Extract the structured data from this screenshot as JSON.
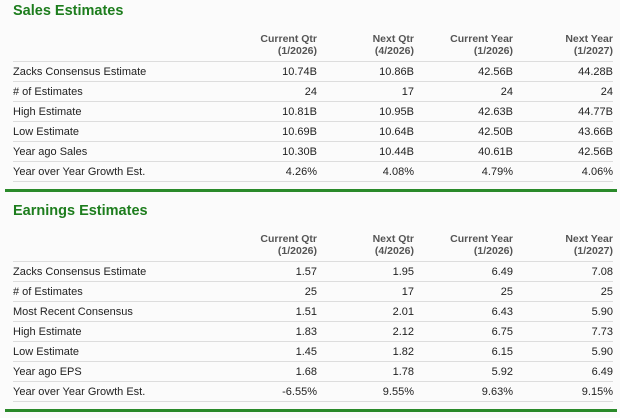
{
  "colors": {
    "title": "#1d7d1d",
    "divider": "#2a8a2a"
  },
  "sales": {
    "title": "Sales Estimates",
    "columns": [
      {
        "name": "Current Qtr",
        "period": "(1/2026)"
      },
      {
        "name": "Next Qtr",
        "period": "(4/2026)"
      },
      {
        "name": "Current Year",
        "period": "(1/2026)"
      },
      {
        "name": "Next Year",
        "period": "(1/2027)"
      }
    ],
    "rows": [
      {
        "label": "Zacks Consensus Estimate",
        "values": [
          "10.74B",
          "10.86B",
          "42.56B",
          "44.28B"
        ]
      },
      {
        "label": "# of Estimates",
        "values": [
          "24",
          "17",
          "24",
          "24"
        ]
      },
      {
        "label": "High Estimate",
        "values": [
          "10.81B",
          "10.95B",
          "42.63B",
          "44.77B"
        ]
      },
      {
        "label": "Low Estimate",
        "values": [
          "10.69B",
          "10.64B",
          "42.50B",
          "43.66B"
        ]
      },
      {
        "label": "Year ago Sales",
        "values": [
          "10.30B",
          "10.44B",
          "40.61B",
          "42.56B"
        ]
      },
      {
        "label": "Year over Year Growth Est.",
        "values": [
          "4.26%",
          "4.08%",
          "4.79%",
          "4.06%"
        ]
      }
    ]
  },
  "earnings": {
    "title": "Earnings Estimates",
    "columns": [
      {
        "name": "Current Qtr",
        "period": "(1/2026)"
      },
      {
        "name": "Next Qtr",
        "period": "(4/2026)"
      },
      {
        "name": "Current Year",
        "period": "(1/2026)"
      },
      {
        "name": "Next Year",
        "period": "(1/2027)"
      }
    ],
    "rows": [
      {
        "label": "Zacks Consensus Estimate",
        "values": [
          "1.57",
          "1.95",
          "6.49",
          "7.08"
        ]
      },
      {
        "label": "# of Estimates",
        "values": [
          "25",
          "17",
          "25",
          "25"
        ]
      },
      {
        "label": "Most Recent Consensus",
        "values": [
          "1.51",
          "2.01",
          "6.43",
          "5.90"
        ]
      },
      {
        "label": "High Estimate",
        "values": [
          "1.83",
          "2.12",
          "6.75",
          "7.73"
        ]
      },
      {
        "label": "Low Estimate",
        "values": [
          "1.45",
          "1.82",
          "6.15",
          "5.90"
        ]
      },
      {
        "label": "Year ago EPS",
        "values": [
          "1.68",
          "1.78",
          "5.92",
          "6.49"
        ]
      },
      {
        "label": "Year over Year Growth Est.",
        "values": [
          "-6.55%",
          "9.55%",
          "9.63%",
          "9.15%"
        ]
      }
    ]
  }
}
